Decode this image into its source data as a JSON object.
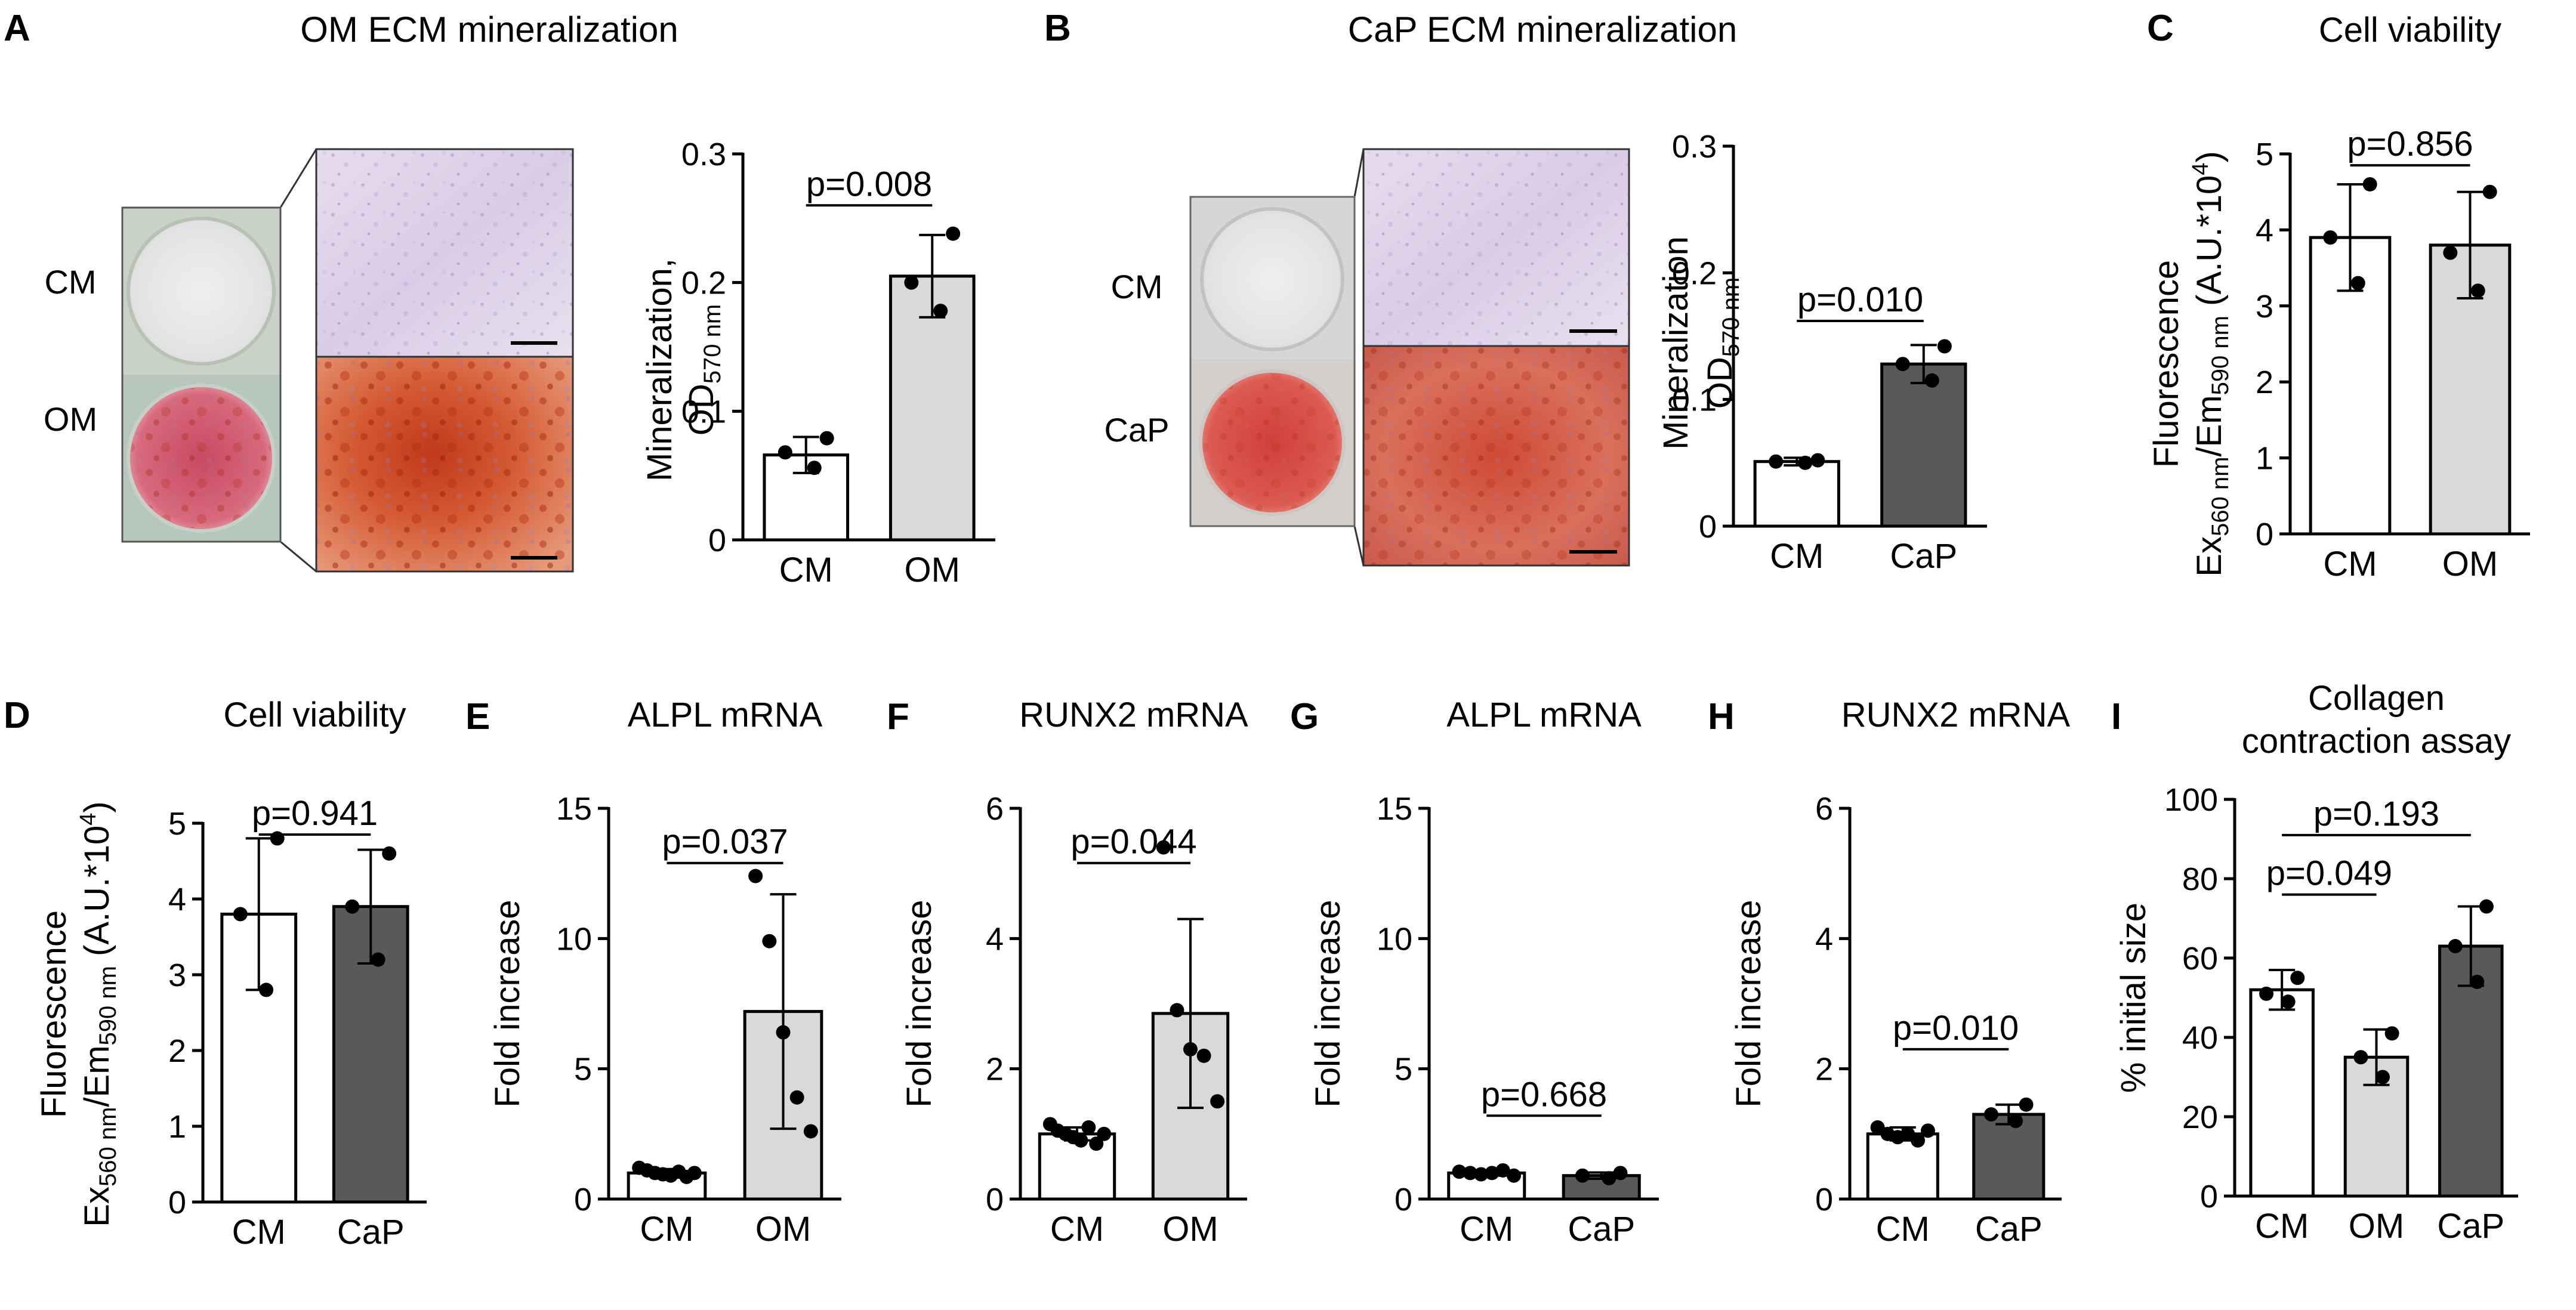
{
  "panels": {
    "A": {
      "letter": "A",
      "title": "OM ECM mineralization",
      "row_labels": [
        "CM",
        "OM"
      ],
      "y_axis_label_main": "Mineralization,",
      "y_axis_label_od": "OD",
      "y_axis_label_sub": "570 nm"
    },
    "B": {
      "letter": "B",
      "title": "CaP ECM mineralization",
      "row_labels": [
        "CM",
        "CaP"
      ],
      "y_axis_label_main": "Mineralization",
      "y_axis_label_od": "OD",
      "y_axis_label_sub": "570 nm"
    },
    "C": {
      "letter": "C"
    },
    "D": {
      "letter": "D"
    },
    "E": {
      "letter": "E"
    },
    "F": {
      "letter": "F"
    },
    "G": {
      "letter": "G"
    },
    "H": {
      "letter": "H"
    },
    "I": {
      "letter": "I"
    }
  },
  "viability_ylabel": {
    "line1": "Fluorescence",
    "ex": "Ex",
    "ex_sub": "560 nm",
    "em": "/Em",
    "em_sub": "590 nm",
    "au": " (A.U.*10",
    "au_sup": "4",
    "au_close": ")"
  },
  "colors": {
    "white_bar": "#ffffff",
    "light_bar": "#d9d9d9",
    "dark_bar": "#595959"
  },
  "chart_data": [
    {
      "id": "A",
      "type": "bar",
      "title": "",
      "ylabel": "Mineralization, OD570 nm",
      "categories": [
        "CM",
        "OM"
      ],
      "ylim": [
        0,
        0.3
      ],
      "ticks": [
        "0",
        "0.1",
        "0.2",
        "0.3"
      ],
      "values": [
        0.066,
        0.205
      ],
      "errors": [
        0.014,
        0.032
      ],
      "points": [
        [
          0.079,
          0.068,
          0.056
        ],
        [
          0.238,
          0.2,
          0.178
        ]
      ],
      "fills": [
        "white",
        "light"
      ],
      "pvalues": [
        {
          "text": "p=0.008",
          "from": 0,
          "to": 1
        }
      ]
    },
    {
      "id": "B",
      "type": "bar",
      "title": "",
      "ylabel": "Mineralization OD570 nm",
      "categories": [
        "CM",
        "CaP"
      ],
      "ylim": [
        0,
        0.3
      ],
      "ticks": [
        "0",
        "0.1",
        "0.2",
        "0.3"
      ],
      "values": [
        0.051,
        0.128
      ],
      "errors": [
        0.003,
        0.015
      ],
      "points": [
        [
          0.052,
          0.051,
          0.05
        ],
        [
          0.142,
          0.128,
          0.115
        ]
      ],
      "fills": [
        "white",
        "dark"
      ],
      "pvalues": [
        {
          "text": "p=0.010",
          "from": 0,
          "to": 1
        }
      ]
    },
    {
      "id": "C",
      "type": "bar",
      "title": "Cell viability",
      "ylabel": "Fluorescence Ex560 nm/Em590 nm (A.U.*10^4)",
      "categories": [
        "CM",
        "OM"
      ],
      "ylim": [
        0,
        5
      ],
      "ticks": [
        "0",
        "1",
        "2",
        "3",
        "4",
        "5"
      ],
      "values": [
        3.9,
        3.8
      ],
      "errors": [
        0.7,
        0.7
      ],
      "points": [
        [
          4.6,
          3.9,
          3.3
        ],
        [
          4.5,
          3.7,
          3.2
        ]
      ],
      "fills": [
        "white",
        "light"
      ],
      "pvalues": [
        {
          "text": "p=0.856",
          "from": 0,
          "to": 1
        }
      ]
    },
    {
      "id": "D",
      "type": "bar",
      "title": "Cell viability",
      "ylabel": "Fluorescence Ex560 nm/Em590 nm (A.U.*10^4)",
      "categories": [
        "CM",
        "CaP"
      ],
      "ylim": [
        0,
        5
      ],
      "ticks": [
        "0",
        "1",
        "2",
        "3",
        "4",
        "5"
      ],
      "values": [
        3.8,
        3.9
      ],
      "errors": [
        1.0,
        0.75
      ],
      "points": [
        [
          4.8,
          3.8,
          2.8
        ],
        [
          4.6,
          3.9,
          3.2
        ]
      ],
      "fills": [
        "white",
        "dark"
      ],
      "pvalues": [
        {
          "text": "p=0.941",
          "from": 0,
          "to": 1
        }
      ]
    },
    {
      "id": "E",
      "type": "bar",
      "title": "ALPL mRNA",
      "ylabel": "Fold increase",
      "categories": [
        "CM",
        "OM"
      ],
      "ylim": [
        0,
        15
      ],
      "ticks": [
        "0",
        "5",
        "10",
        "15"
      ],
      "values": [
        1.0,
        7.2
      ],
      "errors": [
        0.15,
        4.5
      ],
      "points": [
        [
          1.2,
          1.1,
          1.0,
          0.95,
          0.9,
          1.05,
          0.85,
          1.0
        ],
        [
          12.4,
          9.9,
          6.4,
          3.9,
          2.6
        ]
      ],
      "fills": [
        "white",
        "light"
      ],
      "pvalues": [
        {
          "text": "p=0.037",
          "from": 0,
          "to": 1
        }
      ]
    },
    {
      "id": "F",
      "type": "bar",
      "title": "RUNX2 mRNA",
      "ylabel": "Fold increase",
      "categories": [
        "CM",
        "OM"
      ],
      "ylim": [
        0,
        6
      ],
      "ticks": [
        "0",
        "2",
        "4",
        "6"
      ],
      "values": [
        1.0,
        2.85
      ],
      "errors": [
        0.1,
        1.45
      ],
      "points": [
        [
          1.15,
          1.05,
          1.0,
          0.95,
          0.9,
          1.1,
          0.85,
          1.0
        ],
        [
          5.4,
          2.9,
          2.3,
          2.2,
          1.5
        ]
      ],
      "fills": [
        "white",
        "light"
      ],
      "pvalues": [
        {
          "text": "p=0.044",
          "from": 0,
          "to": 1
        }
      ]
    },
    {
      "id": "G",
      "type": "bar",
      "title": "ALPL mRNA",
      "ylabel": "Fold increase",
      "categories": [
        "CM",
        "CaP"
      ],
      "ylim": [
        0,
        15
      ],
      "ticks": [
        "0",
        "5",
        "10",
        "15"
      ],
      "values": [
        1.0,
        0.9
      ],
      "errors": [
        0.1,
        0.12
      ],
      "points": [
        [
          1.05,
          1.0,
          0.95,
          1.0,
          1.1,
          0.9
        ],
        [
          1.0,
          0.9,
          0.8
        ]
      ],
      "fills": [
        "white",
        "dark"
      ],
      "pvalues": [
        {
          "text": "p=0.668",
          "from": 0,
          "to": 1
        }
      ]
    },
    {
      "id": "H",
      "type": "bar",
      "title": "RUNX2 mRNA",
      "ylabel": "Fold increase",
      "categories": [
        "CM",
        "CaP"
      ],
      "ylim": [
        0,
        6
      ],
      "ticks": [
        "0",
        "2",
        "4",
        "6"
      ],
      "values": [
        1.0,
        1.3
      ],
      "errors": [
        0.1,
        0.15
      ],
      "points": [
        [
          1.1,
          1.0,
          0.95,
          1.0,
          0.9,
          1.05
        ],
        [
          1.45,
          1.3,
          1.2
        ]
      ],
      "fills": [
        "white",
        "dark"
      ],
      "pvalues": [
        {
          "text": "p=0.010",
          "from": 0,
          "to": 1
        }
      ]
    },
    {
      "id": "I",
      "type": "bar",
      "title": "Collagen contraction assay",
      "ylabel": "% initial size",
      "categories": [
        "CM",
        "OM",
        "CaP"
      ],
      "ylim": [
        0,
        100
      ],
      "ticks": [
        "0",
        "20",
        "40",
        "60",
        "80",
        "100"
      ],
      "values": [
        52,
        35,
        63
      ],
      "errors": [
        5,
        7,
        10
      ],
      "points": [
        [
          55,
          51,
          49
        ],
        [
          41,
          35,
          30
        ],
        [
          73,
          63,
          54
        ]
      ],
      "fills": [
        "white",
        "light",
        "dark"
      ],
      "pvalues": [
        {
          "text": "p=0.049",
          "from": 0,
          "to": 1
        },
        {
          "text": "p=0.193",
          "from": 0,
          "to": 2
        }
      ]
    }
  ]
}
